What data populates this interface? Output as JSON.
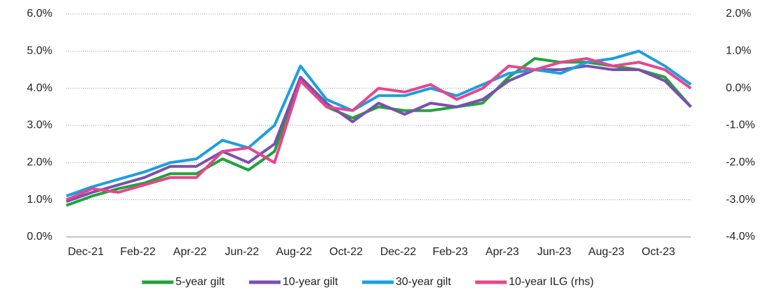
{
  "chart_data": {
    "type": "line",
    "categories": [
      "Dec-21",
      null,
      "Feb-22",
      null,
      "Apr-22",
      null,
      "Jun-22",
      null,
      "Aug-22",
      null,
      "Oct-22",
      null,
      "Dec-22",
      null,
      "Feb-23",
      null,
      "Apr-23",
      null,
      "Jun-23",
      null,
      "Aug-23",
      null,
      "Oct-23",
      null,
      null
    ],
    "ylim": [
      0,
      6
    ],
    "yticks": [
      {
        "value": 0,
        "label": "0.0%"
      },
      {
        "value": 1,
        "label": "1.0%"
      },
      {
        "value": 2,
        "label": "2.0%"
      },
      {
        "value": 3,
        "label": "3.0%"
      },
      {
        "value": 4,
        "label": "4.0%"
      },
      {
        "value": 5,
        "label": "5.0%"
      },
      {
        "value": 6,
        "label": "6.0%"
      }
    ],
    "y2lim": [
      -4,
      2
    ],
    "y2ticks": [
      {
        "value": -4,
        "label": "-4.0%"
      },
      {
        "value": -3,
        "label": "-3.0%"
      },
      {
        "value": -2,
        "label": "-2.0%"
      },
      {
        "value": -1,
        "label": "-1.0%"
      },
      {
        "value": 0,
        "label": "0.0%"
      },
      {
        "value": 1,
        "label": "1.0%"
      },
      {
        "value": 2,
        "label": "2.0%"
      }
    ],
    "grid": true,
    "legend": "bottom",
    "series": [
      {
        "name": "5-year gilt",
        "color": "#1fa33a",
        "values": [
          0.85,
          1.1,
          1.3,
          1.45,
          1.7,
          1.7,
          2.1,
          1.8,
          2.3,
          4.2,
          3.5,
          3.2,
          3.5,
          3.4,
          3.4,
          3.5,
          3.6,
          4.3,
          4.8,
          4.7,
          4.7,
          4.6,
          4.5,
          4.3,
          3.5
        ]
      },
      {
        "name": "10-year gilt",
        "color": "#7b4fb0",
        "values": [
          0.95,
          1.2,
          1.4,
          1.6,
          1.9,
          1.9,
          2.3,
          2.0,
          2.5,
          4.3,
          3.6,
          3.1,
          3.6,
          3.3,
          3.6,
          3.5,
          3.7,
          4.2,
          4.5,
          4.5,
          4.6,
          4.5,
          4.5,
          4.2,
          3.5
        ]
      },
      {
        "name": "30-year gilt",
        "color": "#1a9fe0",
        "values": [
          1.1,
          1.35,
          1.55,
          1.75,
          2.0,
          2.1,
          2.6,
          2.4,
          3.0,
          4.6,
          3.7,
          3.4,
          3.8,
          3.8,
          4.0,
          3.8,
          4.1,
          4.4,
          4.5,
          4.4,
          4.7,
          4.8,
          5.0,
          4.6,
          4.1
        ]
      },
      {
        "name": "10-year ILG (rhs)",
        "color": "#e8458b",
        "axis": "y2",
        "values": [
          -3.0,
          -2.7,
          -2.8,
          -2.6,
          -2.4,
          -2.4,
          -1.7,
          -1.6,
          -2.0,
          0.2,
          -0.5,
          -0.6,
          0.0,
          -0.1,
          0.1,
          -0.3,
          0.0,
          0.6,
          0.5,
          0.7,
          0.8,
          0.6,
          0.7,
          0.5,
          0.0
        ]
      }
    ]
  }
}
